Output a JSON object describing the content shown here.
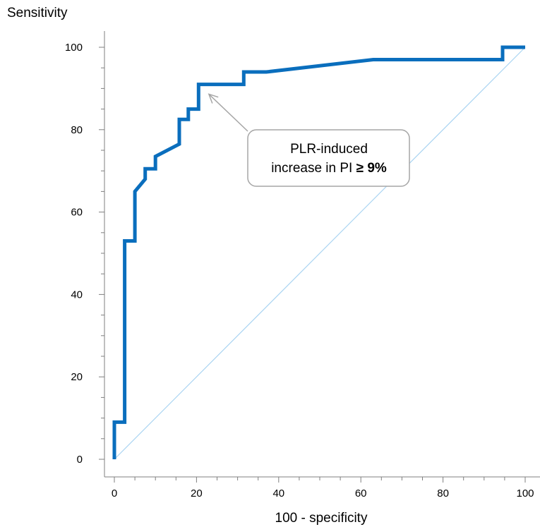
{
  "chart_data": {
    "type": "line",
    "title": "",
    "xlabel": "100 - specificity",
    "ylabel": "Sensitivity",
    "xlim": [
      0,
      100
    ],
    "ylim": [
      0,
      100
    ],
    "x_ticks": [
      0,
      20,
      40,
      60,
      80,
      100
    ],
    "y_ticks": [
      0,
      20,
      40,
      60,
      80,
      100
    ],
    "grid": false,
    "series": [
      {
        "color": "#0a6ebd",
        "points": [
          [
            0,
            0
          ],
          [
            0,
            9
          ],
          [
            2.5,
            9
          ],
          [
            2.5,
            53
          ],
          [
            5,
            53
          ],
          [
            5,
            65
          ],
          [
            7.5,
            68
          ],
          [
            7.5,
            70.5
          ],
          [
            10,
            70.5
          ],
          [
            10,
            73.5
          ],
          [
            15.8,
            76.5
          ],
          [
            15.8,
            82.5
          ],
          [
            18,
            82.5
          ],
          [
            18,
            85
          ],
          [
            20.5,
            85
          ],
          [
            20.5,
            91
          ],
          [
            31.5,
            91
          ],
          [
            31.5,
            94
          ],
          [
            37,
            94
          ],
          [
            63,
            97
          ],
          [
            94.5,
            97
          ],
          [
            94.5,
            100
          ],
          [
            100,
            100
          ]
        ]
      },
      {
        "color": "#a9d4f2",
        "points": [
          [
            0,
            0
          ],
          [
            100,
            100
          ]
        ]
      }
    ],
    "annotation": {
      "text_line1": "PLR-induced",
      "text_line2_prefix": "increase in PI ",
      "text_line2_bold": "≥ 9%",
      "arrow_target": [
        23,
        90
      ]
    }
  }
}
